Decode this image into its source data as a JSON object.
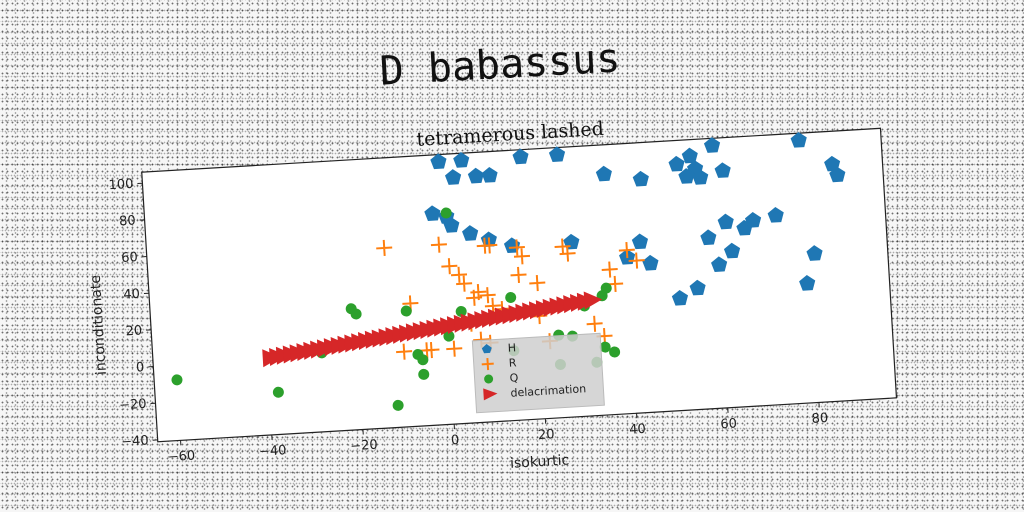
{
  "chart_data": {
    "type": "scatter",
    "suptitle": "D babassus",
    "title": "tetramerous lashed",
    "xlabel": "isokurtic",
    "ylabel": "inconditionate",
    "xlim": [
      -65,
      97
    ],
    "ylim": [
      -41,
      106
    ],
    "xticks": [
      -60,
      -40,
      -20,
      0,
      20,
      40,
      60,
      80
    ],
    "yticks": [
      -40,
      -20,
      0,
      20,
      40,
      60,
      80,
      100
    ],
    "legend_position": "lower center",
    "colors": {
      "H": "#1f77b4",
      "R": "#ff7f0e",
      "Q": "#2ca02c",
      "delacrimation": "#d62728"
    },
    "series": [
      {
        "name": "H",
        "marker": "pentagon",
        "points": [
          [
            0,
            102
          ],
          [
            5,
            102
          ],
          [
            18,
            102
          ],
          [
            26,
            102
          ],
          [
            79,
            102
          ],
          [
            60,
            102
          ],
          [
            3,
            93
          ],
          [
            8,
            93
          ],
          [
            11,
            93
          ],
          [
            -2,
            74
          ],
          [
            1,
            72
          ],
          [
            2,
            67
          ],
          [
            6,
            62
          ],
          [
            10,
            58
          ],
          [
            15,
            54
          ],
          [
            28,
            54
          ],
          [
            40,
            44
          ],
          [
            45,
            40
          ],
          [
            51,
            20
          ],
          [
            55,
            25
          ],
          [
            60,
            37
          ],
          [
            63,
            44
          ],
          [
            58,
            52
          ],
          [
            62,
            60
          ],
          [
            66,
            56
          ],
          [
            68,
            60
          ],
          [
            73,
            62
          ],
          [
            81,
            40
          ],
          [
            79,
            24
          ],
          [
            86,
            88
          ],
          [
            87,
            82
          ],
          [
            52,
            93
          ],
          [
            55,
            97
          ],
          [
            56,
            90
          ],
          [
            54,
            86
          ],
          [
            57,
            85
          ],
          [
            62,
            88
          ],
          [
            44,
            86
          ],
          [
            36,
            90
          ],
          [
            43,
            52
          ]
        ]
      },
      {
        "name": "R",
        "marker": "plus",
        "points": [
          [
            -13,
            57
          ],
          [
            -1,
            57
          ],
          [
            9,
            55
          ],
          [
            10,
            55
          ],
          [
            16,
            53
          ],
          [
            26,
            52
          ],
          [
            27,
            48
          ],
          [
            1,
            45
          ],
          [
            3,
            40
          ],
          [
            4,
            35
          ],
          [
            17,
            48
          ],
          [
            16,
            38
          ],
          [
            20,
            33
          ],
          [
            36,
            38
          ],
          [
            40,
            48
          ],
          [
            42,
            42
          ],
          [
            37,
            30
          ],
          [
            6,
            27
          ],
          [
            7,
            30
          ],
          [
            9,
            28
          ],
          [
            10,
            22
          ],
          [
            12,
            20
          ],
          [
            -8,
            26
          ],
          [
            -10,
            0
          ],
          [
            -5,
            0
          ],
          [
            -4,
            0
          ],
          [
            1,
            0
          ],
          [
            7,
            4
          ],
          [
            9,
            2
          ],
          [
            34,
            2
          ],
          [
            32,
            9
          ],
          [
            22,
            1
          ],
          [
            20,
            15
          ],
          [
            5,
            13
          ]
        ]
      },
      {
        "name": "Q",
        "marker": "circle",
        "points": [
          [
            -60,
            -8
          ],
          [
            -38,
            -18
          ],
          [
            -28,
            2
          ],
          [
            -21,
            25
          ],
          [
            -20,
            22
          ],
          [
            -7,
            -2
          ],
          [
            -6,
            -5
          ],
          [
            -12,
            -29
          ],
          [
            1,
            74
          ],
          [
            -9,
            22
          ],
          [
            -3,
            12
          ],
          [
            0,
            7
          ],
          [
            3,
            20
          ],
          [
            14,
            26
          ],
          [
            24,
            4
          ],
          [
            27,
            3
          ],
          [
            30,
            19
          ],
          [
            34,
            24
          ],
          [
            35,
            28
          ],
          [
            32,
            -12
          ],
          [
            34,
            -4
          ],
          [
            36,
            -7
          ],
          [
            24,
            -12
          ],
          [
            14,
            -3
          ],
          [
            -6,
            -13
          ]
        ]
      },
      {
        "name": "delacrimation",
        "marker": "triangle-right",
        "x0": -39,
        "y0": 1,
        "x1": 32,
        "y1": 22,
        "count": 48
      }
    ]
  }
}
